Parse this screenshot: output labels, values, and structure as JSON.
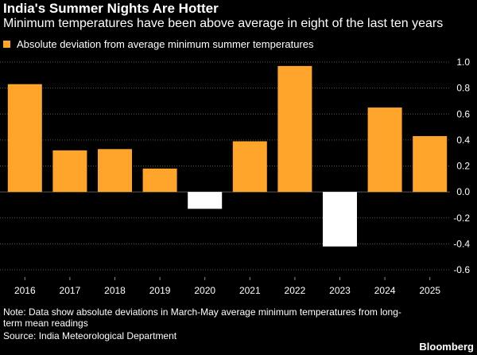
{
  "title": "India's Summer Nights Are Hotter",
  "subtitle": "Minimum temperatures have been above average in eight of the last ten years",
  "legend": {
    "label": "Absolute deviation from average minimum summer temperatures"
  },
  "note": "Note: Data show absolute deviations in March-May average minimum temperatures from long-term mean readings",
  "source": "Source: India Meteorological Department",
  "brand": "Bloomberg",
  "colors": {
    "positive": "#ffa42b",
    "negative": "#ffffff",
    "background": "#000000",
    "grid": "#555555"
  },
  "chart_data": {
    "type": "bar",
    "categories": [
      "2016",
      "2017",
      "2018",
      "2019",
      "2020",
      "2021",
      "2022",
      "2023",
      "2024",
      "2025"
    ],
    "series": [
      {
        "name": "Absolute deviation from average minimum summer temperatures",
        "values": [
          0.83,
          0.32,
          0.33,
          0.18,
          -0.13,
          0.39,
          0.97,
          -0.42,
          0.65,
          0.43
        ]
      }
    ],
    "ylim": [
      -0.6,
      1.0
    ],
    "yticks": [
      1.0,
      0.8,
      0.6,
      0.4,
      0.2,
      0.0,
      -0.2,
      -0.4,
      -0.6
    ],
    "ytick_labels": [
      "1.0",
      "0.8",
      "0.6",
      "0.4",
      "0.2",
      "0.0",
      "-0.2",
      "-0.4",
      "-0.6"
    ],
    "grid": true,
    "y_axis_side": "right",
    "xlabel": "",
    "ylabel": ""
  }
}
